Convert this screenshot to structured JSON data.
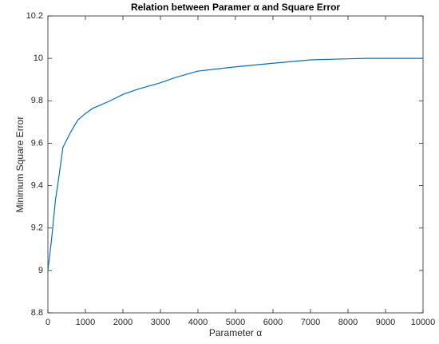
{
  "chart_data": {
    "type": "line",
    "title": "Relation between Paramer α and Square Error",
    "x_label": "Parameter α",
    "y_label": "Minimum Square Error",
    "x": [
      0,
      100,
      200,
      300,
      400,
      600,
      800,
      1000,
      1200,
      1600,
      2000,
      2400,
      3000,
      3400,
      4000,
      5000,
      6000,
      7000,
      8000,
      8500,
      10000
    ],
    "series": [
      {
        "name": "Minimum Square Error",
        "color": "#0072bd",
        "values": [
          9.0,
          9.15,
          9.33,
          9.45,
          9.58,
          9.65,
          9.71,
          9.74,
          9.765,
          9.795,
          9.83,
          9.855,
          9.885,
          9.91,
          9.94,
          9.96,
          9.977,
          9.993,
          9.998,
          10.0,
          10.0
        ]
      }
    ],
    "xlim": [
      0,
      10000
    ],
    "xticks": [
      0,
      1000,
      2000,
      3000,
      4000,
      5000,
      6000,
      7000,
      8000,
      9000,
      10000
    ],
    "ylim": [
      8.8,
      10.2
    ],
    "yticks": [
      8.8,
      9,
      9.2,
      9.4,
      9.6,
      9.8,
      10,
      10.2
    ],
    "grid": false
  }
}
